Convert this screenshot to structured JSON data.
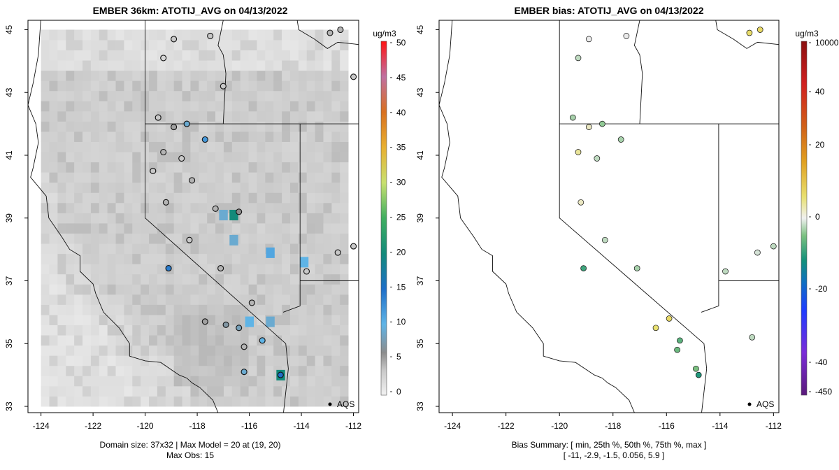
{
  "chart_data": [
    {
      "type": "map-scatter",
      "title": "EMBER 36km: ATOTIJ_AVG on 04/13/2022",
      "xlim": [
        -124.5,
        -111.8
      ],
      "ylim": [
        32.8,
        45.3
      ],
      "x_ticks": [
        -124,
        -122,
        -120,
        -118,
        -116,
        -114,
        -112
      ],
      "x_tick_labels": [
        "-124",
        "-122",
        "-120",
        "-118",
        "-116",
        "-114",
        "-112"
      ],
      "y_ticks": [
        33,
        35,
        37,
        39,
        41,
        43,
        45
      ],
      "y_tick_labels": [
        "33",
        "35",
        "37",
        "39",
        "41",
        "43",
        "45"
      ],
      "colorbar_unit": "ug/m3",
      "colorbar_range": [
        0,
        50
      ],
      "colorbar_ticks": [
        "0",
        "5",
        "10",
        "15",
        "20",
        "25",
        "30",
        "35",
        "40",
        "45",
        "50"
      ],
      "legend_label": "AQS",
      "footer_line1": "Domain size: 37x32 | Max Model = 20 at (19, 20)",
      "footer_line2": "Max Obs: 15",
      "hotspots": [
        {
          "lon": -116.6,
          "lat": 39.1,
          "value": 20
        },
        {
          "lon": -115.2,
          "lat": 37.9,
          "value": 11
        },
        {
          "lon": -113.9,
          "lat": 37.6,
          "value": 10
        },
        {
          "lon": -116.0,
          "lat": 35.7,
          "value": 10
        },
        {
          "lon": -115.2,
          "lat": 35.7,
          "value": 9
        },
        {
          "lon": -116.6,
          "lat": 38.3,
          "value": 9
        },
        {
          "lon": -117.0,
          "lat": 39.1,
          "value": 9
        },
        {
          "lon": -114.8,
          "lat": 34.0,
          "value": 20
        }
      ],
      "sites": [
        {
          "lon": -119.3,
          "lat": 44.1,
          "value": 2
        },
        {
          "lon": -118.9,
          "lat": 44.7,
          "value": 3
        },
        {
          "lon": -117.5,
          "lat": 44.8,
          "value": 3
        },
        {
          "lon": -117.0,
          "lat": 43.2,
          "value": 3
        },
        {
          "lon": -112.5,
          "lat": 45.0,
          "value": 4
        },
        {
          "lon": -112.9,
          "lat": 44.9,
          "value": 4
        },
        {
          "lon": -119.5,
          "lat": 42.2,
          "value": 3
        },
        {
          "lon": -118.9,
          "lat": 41.9,
          "value": 5
        },
        {
          "lon": -118.4,
          "lat": 42.0,
          "value": 9
        },
        {
          "lon": -117.7,
          "lat": 41.5,
          "value": 12
        },
        {
          "lon": -119.3,
          "lat": 41.1,
          "value": 4
        },
        {
          "lon": -118.6,
          "lat": 40.9,
          "value": 3
        },
        {
          "lon": -118.2,
          "lat": 40.2,
          "value": 4
        },
        {
          "lon": -119.7,
          "lat": 40.5,
          "value": 3
        },
        {
          "lon": -119.2,
          "lat": 39.5,
          "value": 4
        },
        {
          "lon": -117.3,
          "lat": 39.3,
          "value": 4
        },
        {
          "lon": -116.4,
          "lat": 39.2,
          "value": 6
        },
        {
          "lon": -118.3,
          "lat": 38.3,
          "value": 3
        },
        {
          "lon": -119.1,
          "lat": 37.4,
          "value": 14
        },
        {
          "lon": -117.1,
          "lat": 37.4,
          "value": 4
        },
        {
          "lon": -113.8,
          "lat": 37.3,
          "value": 3
        },
        {
          "lon": -115.9,
          "lat": 36.3,
          "value": 4
        },
        {
          "lon": -116.4,
          "lat": 35.5,
          "value": 8
        },
        {
          "lon": -116.9,
          "lat": 35.6,
          "value": 7
        },
        {
          "lon": -117.7,
          "lat": 35.7,
          "value": 5
        },
        {
          "lon": -115.5,
          "lat": 35.1,
          "value": 10
        },
        {
          "lon": -116.2,
          "lat": 34.9,
          "value": 4
        },
        {
          "lon": -116.2,
          "lat": 34.1,
          "value": 9
        },
        {
          "lon": -114.8,
          "lat": 34.0,
          "value": 15
        },
        {
          "lon": -112.6,
          "lat": 37.9,
          "value": 3
        },
        {
          "lon": -112.0,
          "lat": 38.1,
          "value": 3
        },
        {
          "lon": -112.0,
          "lat": 43.5,
          "value": 3
        }
      ]
    },
    {
      "type": "map-scatter",
      "title": "EMBER bias: ATOTIJ_AVG on 04/13/2022",
      "xlim": [
        -124.5,
        -111.8
      ],
      "ylim": [
        32.8,
        45.3
      ],
      "x_ticks": [
        -124,
        -122,
        -120,
        -118,
        -116,
        -114,
        -112
      ],
      "x_tick_labels": [
        "-124",
        "-122",
        "-120",
        "-118",
        "-116",
        "-114",
        "-112"
      ],
      "y_ticks": [
        33,
        35,
        37,
        39,
        41,
        43,
        45
      ],
      "y_tick_labels": [
        "33",
        "35",
        "37",
        "39",
        "41",
        "43",
        "45"
      ],
      "colorbar_unit": "ug/m3",
      "colorbar_ticks": [
        "10000",
        "40",
        "20",
        "0",
        "-20",
        "-40",
        "-450"
      ],
      "legend_label": "AQS",
      "footer_line1": "Bias Summary: [ min, 25th %, 50th %, 75th %, max ]",
      "footer_line2": "[ -11,   -2.9,   -1.5,   0.056,   5.9 ]",
      "bias_summary": {
        "min": -11,
        "p25": -2.9,
        "p50": -1.5,
        "p75": 0.056,
        "max": 5.9
      },
      "sites": [
        {
          "lon": -119.3,
          "lat": 44.1,
          "value": -2
        },
        {
          "lon": -118.9,
          "lat": 44.7,
          "value": 0
        },
        {
          "lon": -117.5,
          "lat": 44.8,
          "value": 0
        },
        {
          "lon": -112.9,
          "lat": 44.9,
          "value": 4
        },
        {
          "lon": -112.5,
          "lat": 45.0,
          "value": 5
        },
        {
          "lon": -119.5,
          "lat": 42.2,
          "value": -3
        },
        {
          "lon": -118.9,
          "lat": 41.9,
          "value": 1
        },
        {
          "lon": -118.4,
          "lat": 42.0,
          "value": -4
        },
        {
          "lon": -117.7,
          "lat": 41.5,
          "value": -3
        },
        {
          "lon": -119.3,
          "lat": 41.1,
          "value": 2
        },
        {
          "lon": -118.6,
          "lat": 40.9,
          "value": -2
        },
        {
          "lon": -119.2,
          "lat": 39.5,
          "value": 1
        },
        {
          "lon": -118.3,
          "lat": 38.3,
          "value": -2
        },
        {
          "lon": -119.1,
          "lat": 37.4,
          "value": -9
        },
        {
          "lon": -117.1,
          "lat": 37.4,
          "value": -3
        },
        {
          "lon": -116.4,
          "lat": 35.5,
          "value": 3
        },
        {
          "lon": -115.9,
          "lat": 35.8,
          "value": 5
        },
        {
          "lon": -115.5,
          "lat": 35.1,
          "value": -7
        },
        {
          "lon": -115.6,
          "lat": 34.8,
          "value": -6
        },
        {
          "lon": -114.8,
          "lat": 34.0,
          "value": -11
        },
        {
          "lon": -114.9,
          "lat": 34.2,
          "value": -5
        },
        {
          "lon": -113.8,
          "lat": 37.3,
          "value": -2
        },
        {
          "lon": -112.6,
          "lat": 37.9,
          "value": -1
        },
        {
          "lon": -112.0,
          "lat": 38.1,
          "value": -2
        },
        {
          "lon": -112.8,
          "lat": 35.2,
          "value": -2
        }
      ]
    }
  ]
}
